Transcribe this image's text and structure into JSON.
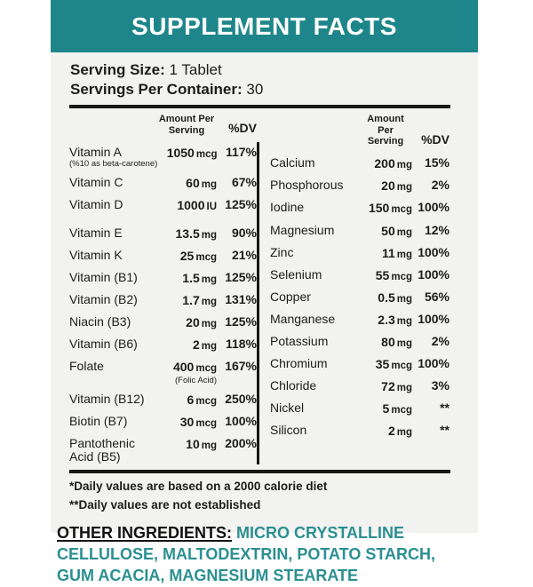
{
  "title": "SUPPLEMENT FACTS",
  "colors": {
    "banner_teal": "#1e868a",
    "ingredients_teal": "#2b8f91",
    "label_bg": "#f2f2f1",
    "rule_black": "#171717"
  },
  "serving": {
    "size_label": "Serving Size:",
    "size_value": "1 Tablet",
    "per_container_label": "Servings Per Container:",
    "per_container_value": "30"
  },
  "table": {
    "amount_header": "Amount Per Serving",
    "dv_header": "%DV",
    "left_rows": [
      {
        "name": "Vitamin A",
        "sub": "(%10 as beta-carotene)",
        "amount": "1050",
        "unit": "mcg",
        "dv": "117%"
      },
      {
        "name": "Vitamin C",
        "amount": "60",
        "unit": "mg",
        "dv": "67%"
      },
      {
        "name": "Vitamin D",
        "amount": "1000",
        "unit": "IU",
        "dv": "125%"
      },
      {
        "name": "Vitamin E",
        "amount": "13.5",
        "unit": "mg",
        "dv": "90%"
      },
      {
        "name": "Vitamin K",
        "amount": "25",
        "unit": "mcg",
        "dv": "21%"
      },
      {
        "name": "Vitamin (B1)",
        "amount": "1.5",
        "unit": "mg",
        "dv": "125%"
      },
      {
        "name": "Vitamin (B2)",
        "amount": "1.7",
        "unit": "mg",
        "dv": "131%"
      },
      {
        "name": "Niacin (B3)",
        "amount": "20",
        "unit": "mg",
        "dv": "125%"
      },
      {
        "name": "Vitamin (B6)",
        "amount": "2",
        "unit": "mg",
        "dv": "118%"
      },
      {
        "name": "Folate",
        "amount": "400",
        "unit": "mcg",
        "amount_sub": "(Folic Acid)",
        "dv": "167%"
      },
      {
        "name": "Vitamin (B12)",
        "amount": "6",
        "unit": "mcg",
        "dv": "250%"
      },
      {
        "name": "Biotin (B7)",
        "amount": "30",
        "unit": "mcg",
        "dv": "100%"
      },
      {
        "name": "Pantothenic Acid (B5)",
        "amount": "10",
        "unit": "mg",
        "dv": "200%"
      }
    ],
    "right_rows": [
      {
        "name": "Calcium",
        "amount": "200",
        "unit": "mg",
        "dv": "15%"
      },
      {
        "name": "Phosphorous",
        "amount": "20",
        "unit": "mg",
        "dv": "2%"
      },
      {
        "name": "Iodine",
        "amount": "150",
        "unit": "mcg",
        "dv": "100%"
      },
      {
        "name": "Magnesium",
        "amount": "50",
        "unit": "mg",
        "dv": "12%"
      },
      {
        "name": "Zinc",
        "amount": "11",
        "unit": "mg",
        "dv": "100%"
      },
      {
        "name": "Selenium",
        "amount": "55",
        "unit": "mcg",
        "dv": "100%"
      },
      {
        "name": "Copper",
        "amount": "0.5",
        "unit": "mg",
        "dv": "56%"
      },
      {
        "name": "Manganese",
        "amount": "2.3",
        "unit": "mg",
        "dv": "100%"
      },
      {
        "name": "Potassium",
        "amount": "80",
        "unit": "mg",
        "dv": "2%"
      },
      {
        "name": "Chromium",
        "amount": "35",
        "unit": "mcg",
        "dv": "100%"
      },
      {
        "name": "Chloride",
        "amount": "72",
        "unit": "mg",
        "dv": "3%"
      },
      {
        "name": "Nickel",
        "amount": "5",
        "unit": "mcg",
        "dv": "**"
      },
      {
        "name": "Silicon",
        "amount": "2",
        "unit": "mg",
        "dv": "**"
      }
    ]
  },
  "footnotes": [
    "*Daily values are based on a 2000 calorie diet",
    "**Daily values are not established"
  ],
  "other_ingredients": {
    "label": "OTHER INGREDIENTS:",
    "text": "MICRO CRYSTALLINE CELLULOSE, MALTODEXTRIN, POTATO STARCH, GUM ACACIA, MAGNESIUM STEARATE"
  }
}
